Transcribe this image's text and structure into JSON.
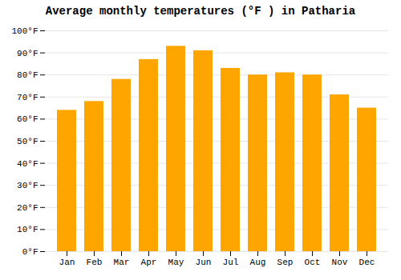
{
  "chart_data": {
    "type": "bar",
    "title": "Average monthly temperatures (°F ) in Patharia",
    "categories": [
      "Jan",
      "Feb",
      "Mar",
      "Apr",
      "May",
      "Jun",
      "Jul",
      "Aug",
      "Sep",
      "Oct",
      "Nov",
      "Dec"
    ],
    "values": [
      64,
      68,
      78,
      87,
      93,
      91,
      83,
      80,
      81,
      80,
      71,
      65
    ],
    "color": "#FFA500",
    "ylim": [
      0,
      100
    ],
    "yticks": [
      {
        "value": 0,
        "label": "0°F"
      },
      {
        "value": 10,
        "label": "10°F"
      },
      {
        "value": 20,
        "label": "20°F"
      },
      {
        "value": 30,
        "label": "30°F"
      },
      {
        "value": 40,
        "label": "40°F"
      },
      {
        "value": 50,
        "label": "50°F"
      },
      {
        "value": 60,
        "label": "60°F"
      },
      {
        "value": 70,
        "label": "70°F"
      },
      {
        "value": 80,
        "label": "80°F"
      },
      {
        "value": 90,
        "label": "90°F"
      },
      {
        "value": 100,
        "label": "100°F"
      }
    ],
    "grid": true
  }
}
